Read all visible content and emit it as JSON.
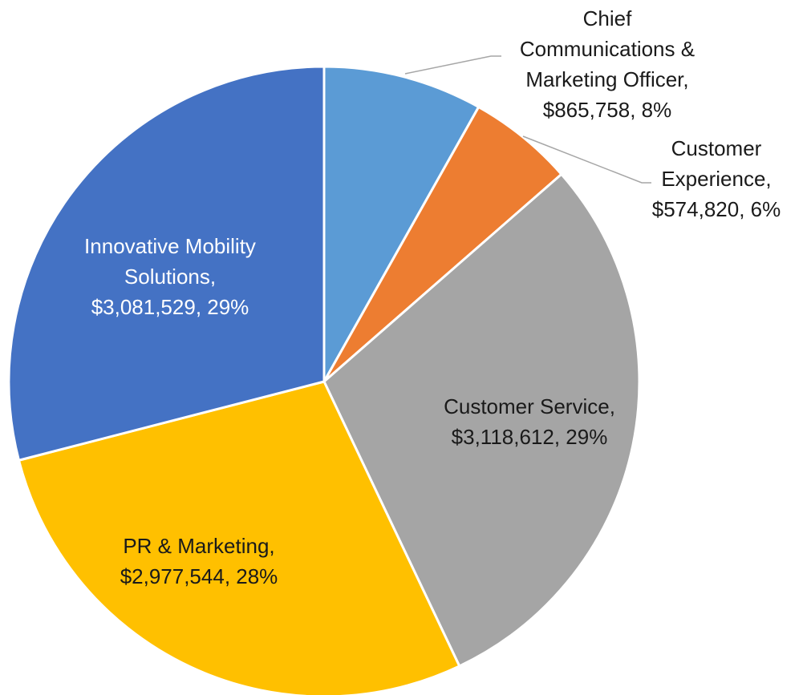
{
  "chart_data": {
    "type": "pie",
    "categories": [
      "Chief Communications & Marketing Officer,",
      "Customer Experience,",
      "Customer Service,",
      "PR & Marketing,",
      "Innovative Mobility Solutions,"
    ],
    "values": [
      865758,
      574820,
      3118612,
      2977544,
      3081529
    ],
    "value_labels": [
      "$865,758, 8%",
      "$574,820, 6%",
      "$3,118,612, 29%",
      "$2,977,544, 28%",
      "$3,081,529, 29%"
    ],
    "colors": [
      "#5b9bd5",
      "#ed7d31",
      "#a5a5a5",
      "#ffc000",
      "#4472c4"
    ]
  }
}
